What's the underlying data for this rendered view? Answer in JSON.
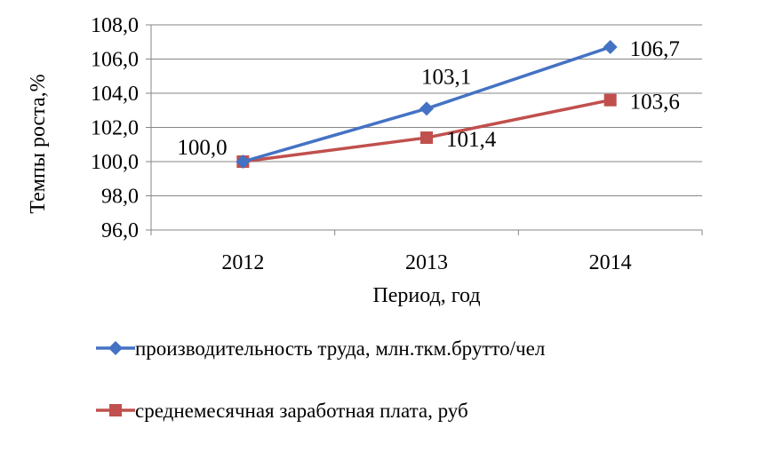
{
  "chart_data": {
    "type": "line",
    "xlabel": "Период, год",
    "ylabel": "Темпы роста,%",
    "categories": [
      "2012",
      "2013",
      "2014"
    ],
    "ylim": [
      96.0,
      108.0
    ],
    "ytick_step": 2.0,
    "ytick_labels": [
      "96,0",
      "98,0",
      "100,0",
      "102,0",
      "104,0",
      "106,0",
      "108,0"
    ],
    "grid": true,
    "legend_position": "bottom",
    "series": [
      {
        "name": "производительность труда, млн.ткм.брутто/чел",
        "values": [
          100.0,
          103.1,
          106.7
        ],
        "labels": [
          "100,0",
          "103,1",
          "106,7"
        ],
        "color": "#4472C4",
        "marker": "diamond"
      },
      {
        "name": "среднемесячная заработная плата, руб",
        "values": [
          100.0,
          101.4,
          103.6
        ],
        "labels": [
          "",
          "101,4",
          "103,6"
        ],
        "color": "#C0504D",
        "marker": "square"
      }
    ]
  }
}
